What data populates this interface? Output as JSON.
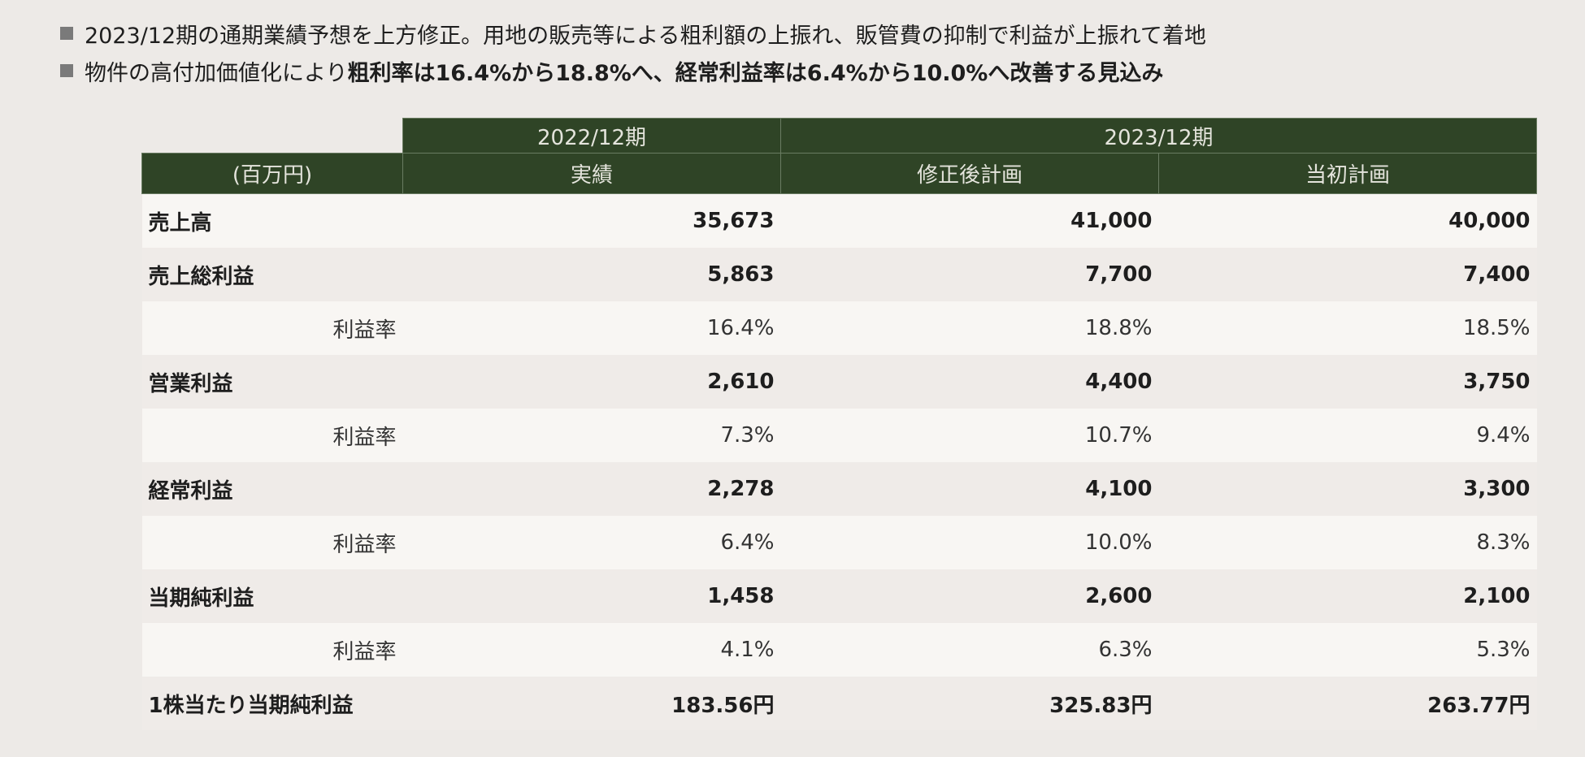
{
  "bullets": [
    {
      "text": "2023/12期の通期業績予想を上方修正。用地の販売等による粗利額の上振れ、販管費の抑制で利益が上振れて着地",
      "emphasis": ""
    },
    {
      "text": "物件の高付加価値化により",
      "emphasis": "粗利率は16.4%から18.8%へ、経常利益率は6.4%から10.0%へ改善する見込み"
    }
  ],
  "table": {
    "period_headers": {
      "fy2022": "2022/12期",
      "fy2023": "2023/12期"
    },
    "column_headers": {
      "unit": "(百万円)",
      "actual": "実績",
      "revised": "修正後計画",
      "initial": "当初計画"
    },
    "rows": [
      {
        "label": "売上高",
        "actual": "35,673",
        "revised": "41,000",
        "initial": "40,000"
      },
      {
        "label": "売上総利益",
        "actual": "5,863",
        "revised": "7,700",
        "initial": "7,400"
      },
      {
        "label": "利益率",
        "actual": "16.4%",
        "revised": "18.8%",
        "initial": "18.5%"
      },
      {
        "label": "営業利益",
        "actual": "2,610",
        "revised": "4,400",
        "initial": "3,750"
      },
      {
        "label": "利益率",
        "actual": "7.3%",
        "revised": "10.7%",
        "initial": "9.4%"
      },
      {
        "label": "経常利益",
        "actual": "2,278",
        "revised": "4,100",
        "initial": "3,300"
      },
      {
        "label": "利益率",
        "actual": "6.4%",
        "revised": "10.0%",
        "initial": "8.3%"
      },
      {
        "label": "当期純利益",
        "actual": "1,458",
        "revised": "2,600",
        "initial": "2,100"
      },
      {
        "label": "利益率",
        "actual": "4.1%",
        "revised": "6.3%",
        "initial": "5.3%"
      },
      {
        "label": "1株当たり当期純利益",
        "actual": "183.56円",
        "revised": "325.83円",
        "initial": "263.77円"
      }
    ]
  }
}
